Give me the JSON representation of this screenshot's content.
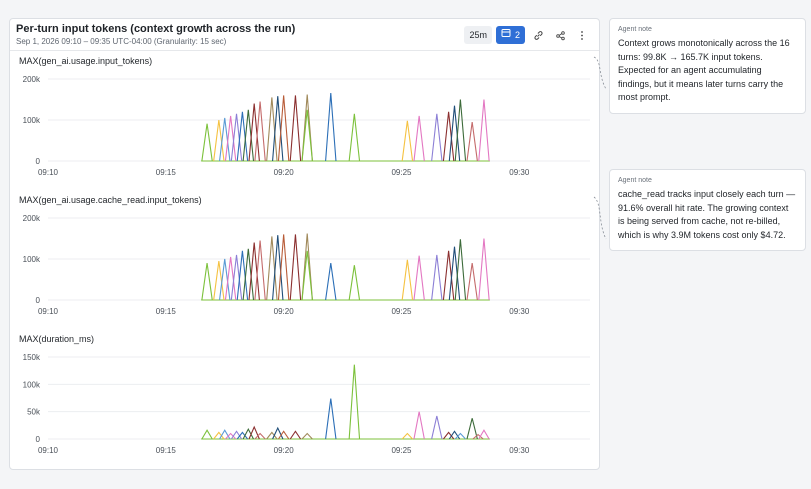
{
  "widget": {
    "title": "Per-turn input tokens (context growth across the run)",
    "subtitle": "Sep 1, 2026 09:10 – 09:35 UTC-04:00 (Granularity: 15 sec)",
    "toolbar": {
      "time_range": "25m",
      "dashboard_count": "2",
      "icons": [
        "dashboard-icon",
        "link-icon",
        "share-icon",
        "more-icon"
      ]
    }
  },
  "notes": [
    {
      "label": "Agent note",
      "text": "Context grows monotonically across the 16 turns: 99.8K → 165.7K input tokens. Expected for an agent accumulating findings, but it means later turns carry the most prompt."
    },
    {
      "label": "Agent note",
      "text": "cache_read tracks input closely each turn — 91.6% overall hit rate. The growing context is being served from cache, not re-billed, which is why 3.9M tokens cost only $4.72."
    }
  ],
  "colors": {
    "series": [
      "#7cc13b",
      "#f5c242",
      "#5b9bd5",
      "#e377c2",
      "#8c7fd6",
      "#2c6fb7",
      "#3d6b3a",
      "#8b2f2f",
      "#c46b6b",
      "#a0895a",
      "#1f4e79",
      "#b85c38"
    ]
  },
  "chart_data": [
    {
      "type": "line",
      "title": "MAX(gen_ai.usage.input_tokens)",
      "x_ticks": [
        "09:10",
        "09:15",
        "09:20",
        "09:25",
        "09:30"
      ],
      "y_ticks": [
        "0",
        "100k",
        "200k"
      ],
      "xlim": [
        "09:10",
        "09:33"
      ],
      "ylim": [
        0,
        200000
      ],
      "grid": true,
      "spikes": [
        {
          "x": "09:16:45",
          "y": 91000,
          "color": 0
        },
        {
          "x": "09:17:15",
          "y": 99800,
          "color": 1
        },
        {
          "x": "09:17:30",
          "y": 105000,
          "color": 2
        },
        {
          "x": "09:17:45",
          "y": 110000,
          "color": 3
        },
        {
          "x": "09:18:00",
          "y": 115000,
          "color": 4
        },
        {
          "x": "09:18:15",
          "y": 120000,
          "color": 5
        },
        {
          "x": "09:18:30",
          "y": 125000,
          "color": 6
        },
        {
          "x": "09:18:45",
          "y": 140000,
          "color": 7
        },
        {
          "x": "09:19:00",
          "y": 145000,
          "color": 8
        },
        {
          "x": "09:19:30",
          "y": 155000,
          "color": 9
        },
        {
          "x": "09:19:45",
          "y": 158000,
          "color": 10
        },
        {
          "x": "09:20:00",
          "y": 160000,
          "color": 11
        },
        {
          "x": "09:20:30",
          "y": 160000,
          "color": 7
        },
        {
          "x": "09:21:00",
          "y": 162000,
          "color": 9
        },
        {
          "x": "09:21:00",
          "y": 125000,
          "color": 0
        },
        {
          "x": "09:22:00",
          "y": 165700,
          "color": 5
        },
        {
          "x": "09:23:00",
          "y": 115000,
          "color": 0
        },
        {
          "x": "09:25:15",
          "y": 98000,
          "color": 1
        },
        {
          "x": "09:25:45",
          "y": 110000,
          "color": 3
        },
        {
          "x": "09:26:30",
          "y": 115000,
          "color": 4
        },
        {
          "x": "09:27:00",
          "y": 120000,
          "color": 7
        },
        {
          "x": "09:27:15",
          "y": 135000,
          "color": 10
        },
        {
          "x": "09:27:30",
          "y": 150000,
          "color": 6
        },
        {
          "x": "09:28:00",
          "y": 95000,
          "color": 8
        },
        {
          "x": "09:28:30",
          "y": 150000,
          "color": 3
        }
      ]
    },
    {
      "type": "line",
      "title": "MAX(gen_ai.usage.cache_read.input_tokens)",
      "x_ticks": [
        "09:10",
        "09:15",
        "09:20",
        "09:25",
        "09:30"
      ],
      "y_ticks": [
        "0",
        "100k",
        "200k"
      ],
      "xlim": [
        "09:10",
        "09:33"
      ],
      "ylim": [
        0,
        200000
      ],
      "grid": true,
      "spikes": [
        {
          "x": "09:16:45",
          "y": 90000,
          "color": 0
        },
        {
          "x": "09:17:15",
          "y": 95000,
          "color": 1
        },
        {
          "x": "09:17:30",
          "y": 100000,
          "color": 2
        },
        {
          "x": "09:17:45",
          "y": 105000,
          "color": 3
        },
        {
          "x": "09:18:00",
          "y": 110000,
          "color": 4
        },
        {
          "x": "09:18:15",
          "y": 120000,
          "color": 5
        },
        {
          "x": "09:18:30",
          "y": 125000,
          "color": 6
        },
        {
          "x": "09:18:45",
          "y": 140000,
          "color": 7
        },
        {
          "x": "09:19:00",
          "y": 145000,
          "color": 8
        },
        {
          "x": "09:19:30",
          "y": 155000,
          "color": 9
        },
        {
          "x": "09:19:45",
          "y": 158000,
          "color": 10
        },
        {
          "x": "09:20:00",
          "y": 160000,
          "color": 11
        },
        {
          "x": "09:20:30",
          "y": 160000,
          "color": 7
        },
        {
          "x": "09:21:00",
          "y": 162000,
          "color": 9
        },
        {
          "x": "09:21:00",
          "y": 120000,
          "color": 0
        },
        {
          "x": "09:22:00",
          "y": 90000,
          "color": 5
        },
        {
          "x": "09:23:00",
          "y": 85000,
          "color": 0
        },
        {
          "x": "09:25:15",
          "y": 98000,
          "color": 1
        },
        {
          "x": "09:25:45",
          "y": 108000,
          "color": 3
        },
        {
          "x": "09:26:30",
          "y": 110000,
          "color": 4
        },
        {
          "x": "09:27:00",
          "y": 120000,
          "color": 7
        },
        {
          "x": "09:27:15",
          "y": 130000,
          "color": 10
        },
        {
          "x": "09:27:30",
          "y": 148000,
          "color": 6
        },
        {
          "x": "09:28:00",
          "y": 90000,
          "color": 8
        },
        {
          "x": "09:28:30",
          "y": 150000,
          "color": 3
        }
      ]
    },
    {
      "type": "line",
      "title": "MAX(duration_ms)",
      "x_ticks": [
        "09:10",
        "09:15",
        "09:20",
        "09:25",
        "09:30"
      ],
      "y_ticks": [
        "0",
        "50k",
        "100k",
        "150k"
      ],
      "xlim": [
        "09:10",
        "09:33"
      ],
      "ylim": [
        0,
        150000
      ],
      "grid": true,
      "spikes": [
        {
          "x": "09:16:45",
          "y": 16000,
          "color": 0
        },
        {
          "x": "09:17:15",
          "y": 12000,
          "color": 1
        },
        {
          "x": "09:17:30",
          "y": 16000,
          "color": 2
        },
        {
          "x": "09:17:45",
          "y": 10000,
          "color": 3
        },
        {
          "x": "09:18:00",
          "y": 14000,
          "color": 4
        },
        {
          "x": "09:18:15",
          "y": 12000,
          "color": 5
        },
        {
          "x": "09:18:30",
          "y": 18000,
          "color": 6
        },
        {
          "x": "09:18:45",
          "y": 22000,
          "color": 7
        },
        {
          "x": "09:19:00",
          "y": 10000,
          "color": 8
        },
        {
          "x": "09:19:30",
          "y": 12000,
          "color": 9
        },
        {
          "x": "09:19:45",
          "y": 20000,
          "color": 10
        },
        {
          "x": "09:20:00",
          "y": 14000,
          "color": 11
        },
        {
          "x": "09:20:30",
          "y": 14000,
          "color": 7
        },
        {
          "x": "09:21:00",
          "y": 10000,
          "color": 9
        },
        {
          "x": "09:22:00",
          "y": 74000,
          "color": 5
        },
        {
          "x": "09:23:00",
          "y": 136000,
          "color": 0
        },
        {
          "x": "09:25:15",
          "y": 10000,
          "color": 1
        },
        {
          "x": "09:25:45",
          "y": 50000,
          "color": 3
        },
        {
          "x": "09:26:30",
          "y": 42000,
          "color": 4
        },
        {
          "x": "09:27:00",
          "y": 12000,
          "color": 7
        },
        {
          "x": "09:27:15",
          "y": 14000,
          "color": 10
        },
        {
          "x": "09:27:30",
          "y": 10000,
          "color": 2
        },
        {
          "x": "09:28:00",
          "y": 38000,
          "color": 6
        },
        {
          "x": "09:28:15",
          "y": 8000,
          "color": 8
        },
        {
          "x": "09:28:30",
          "y": 16000,
          "color": 3
        }
      ]
    }
  ]
}
